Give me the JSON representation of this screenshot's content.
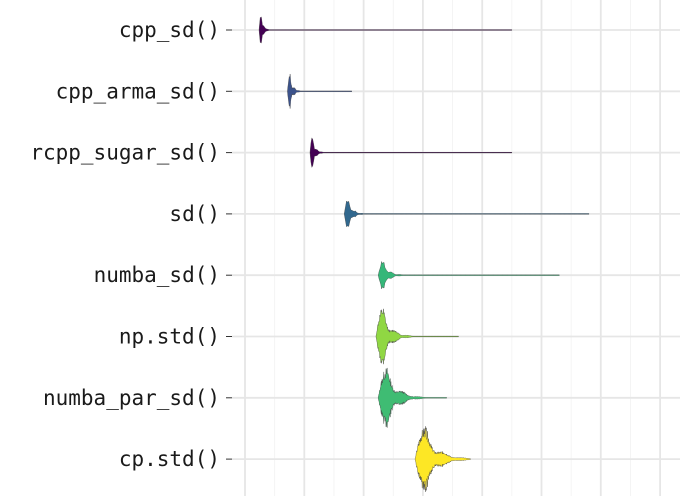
{
  "chart_data": {
    "type": "violin",
    "title": "",
    "xlabel": "",
    "ylabel": "",
    "x_tick_labels": [],
    "grid": true,
    "legend": "none",
    "categories": [
      "cpp_sd()",
      "cpp_arma_sd()",
      "rcpp_sugar_sd()",
      "sd()",
      "numba_sd()",
      "np.std()",
      "numba_par_sd()",
      "cp.std()"
    ],
    "series": [
      {
        "label": "cpp_sd()",
        "color": "#440154",
        "mode": 0.27,
        "spread": 0.06,
        "tail_end": 4.5,
        "max_width": 0.6
      },
      {
        "label": "cpp_arma_sd()",
        "color": "#3b528b",
        "mode": 0.76,
        "spread": 0.08,
        "tail_end": 1.8,
        "max_width": 0.5
      },
      {
        "label": "rcpp_sugar_sd()",
        "color": "#440154",
        "mode": 1.14,
        "spread": 0.08,
        "tail_end": 4.5,
        "max_width": 0.5
      },
      {
        "label": "sd()",
        "color": "#31688e",
        "mode": 1.74,
        "spread": 0.12,
        "tail_end": 5.8,
        "max_width": 0.45
      },
      {
        "label": "numba_sd()",
        "color": "#35b779",
        "mode": 2.33,
        "spread": 0.15,
        "tail_end": 5.3,
        "max_width": 0.46
      },
      {
        "label": "np.std()",
        "color": "#90d743",
        "mode": 2.33,
        "spread": 0.22,
        "tail_end": 3.6,
        "max_width": 0.8
      },
      {
        "label": "numba_par_sd()",
        "color": "#3fbc73",
        "mode": 2.4,
        "spread": 0.28,
        "tail_end": 3.4,
        "max_width": 0.84
      },
      {
        "label": "cp.std()",
        "color": "#fde725",
        "mode": 3.05,
        "spread": 0.33,
        "tail_end": 3.8,
        "max_width": 0.9
      }
    ],
    "xlim": [
      0,
      7
    ]
  }
}
